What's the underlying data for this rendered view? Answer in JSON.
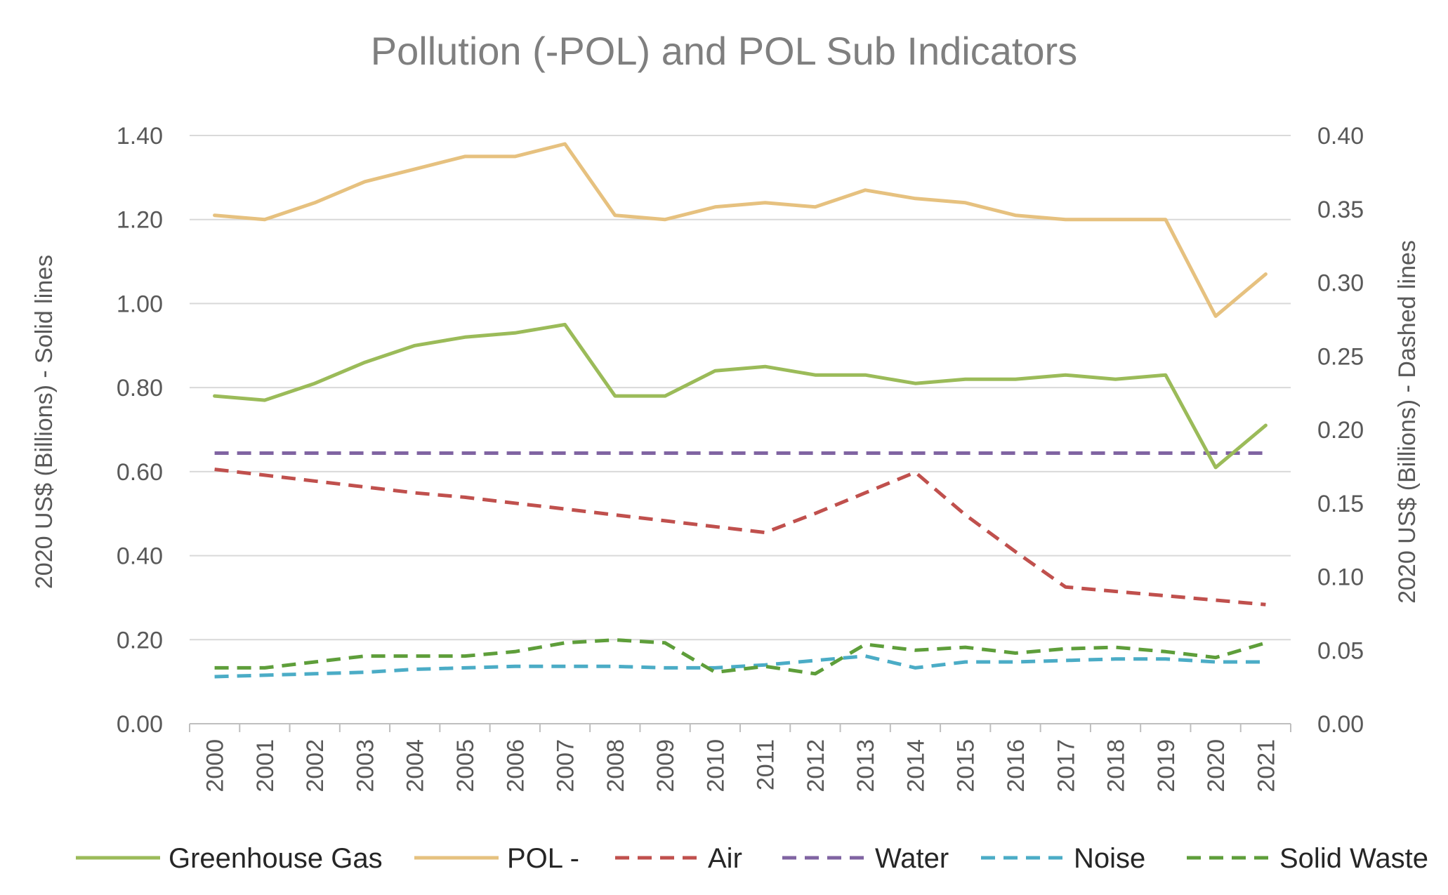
{
  "chart_data": {
    "type": "line",
    "title": "Pollution (-POL) and POL Sub Indicators",
    "categories": [
      "2000",
      "2001",
      "2002",
      "2003",
      "2004",
      "2005",
      "2006",
      "2007",
      "2008",
      "2009",
      "2010",
      "2011",
      "2012",
      "2013",
      "2014",
      "2015",
      "2016",
      "2017",
      "2018",
      "2019",
      "2020",
      "2021"
    ],
    "ylabel_left": "2020 US$ (Billions) - Solid lines",
    "ylabel_right": "2020 US$ (Billions) - Dashed lines",
    "ylim_left": [
      0,
      1.4
    ],
    "ylim_right": [
      0,
      0.4
    ],
    "yticks_left": [
      "0.00",
      "0.20",
      "0.40",
      "0.60",
      "0.80",
      "1.00",
      "1.20",
      "1.40"
    ],
    "yticks_right": [
      "0.00",
      "0.05",
      "0.10",
      "0.15",
      "0.20",
      "0.25",
      "0.30",
      "0.35",
      "0.40"
    ],
    "grid": true,
    "legend_position": "bottom",
    "series": [
      {
        "name": "Greenhouse Gas",
        "axis": "left",
        "style": "solid",
        "color": "#9bbb59",
        "values": [
          0.78,
          0.77,
          0.81,
          0.86,
          0.9,
          0.92,
          0.93,
          0.95,
          0.78,
          0.78,
          0.84,
          0.85,
          0.83,
          0.83,
          0.81,
          0.82,
          0.82,
          0.83,
          0.82,
          0.83,
          0.61,
          0.71
        ]
      },
      {
        "name": "POL -",
        "axis": "left",
        "style": "solid",
        "color": "#e6c17f",
        "values": [
          1.21,
          1.2,
          1.24,
          1.29,
          1.32,
          1.35,
          1.35,
          1.38,
          1.21,
          1.2,
          1.23,
          1.24,
          1.23,
          1.27,
          1.25,
          1.24,
          1.21,
          1.2,
          1.2,
          1.2,
          0.97,
          1.07
        ]
      },
      {
        "name": "Air",
        "axis": "right",
        "style": "dashed",
        "color": "#c0504d",
        "values": [
          0.173,
          0.169,
          0.165,
          0.161,
          0.157,
          0.154,
          0.15,
          0.146,
          0.142,
          0.138,
          0.134,
          0.13,
          0.143,
          0.157,
          0.171,
          0.142,
          0.117,
          0.093,
          0.09,
          0.087,
          0.084,
          0.081
        ]
      },
      {
        "name": "Water",
        "axis": "right",
        "style": "dashed",
        "color": "#8064a2",
        "values": [
          0.184,
          0.184,
          0.184,
          0.184,
          0.184,
          0.184,
          0.184,
          0.184,
          0.184,
          0.184,
          0.184,
          0.184,
          0.184,
          0.184,
          0.184,
          0.184,
          0.184,
          0.184,
          0.184,
          0.184,
          0.184,
          0.184
        ]
      },
      {
        "name": "Noise",
        "axis": "right",
        "style": "dashed",
        "color": "#4bacc6",
        "values": [
          0.032,
          0.033,
          0.034,
          0.035,
          0.037,
          0.038,
          0.039,
          0.039,
          0.039,
          0.038,
          0.038,
          0.04,
          0.043,
          0.046,
          0.038,
          0.042,
          0.042,
          0.043,
          0.044,
          0.044,
          0.042,
          0.042
        ]
      },
      {
        "name": "Solid Waste",
        "axis": "right",
        "style": "dashed",
        "color": "#5e9e3a",
        "values": [
          0.038,
          0.038,
          0.042,
          0.046,
          0.046,
          0.046,
          0.049,
          0.055,
          0.057,
          0.055,
          0.035,
          0.039,
          0.034,
          0.054,
          0.05,
          0.052,
          0.048,
          0.051,
          0.052,
          0.049,
          0.045,
          0.055
        ]
      }
    ]
  }
}
